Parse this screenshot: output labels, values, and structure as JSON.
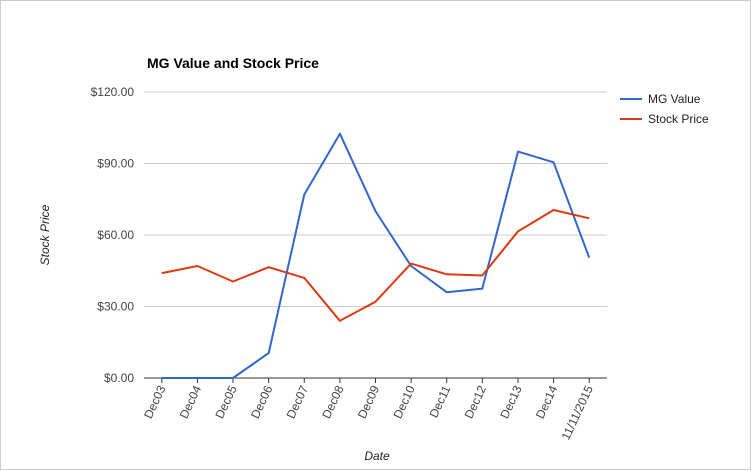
{
  "chart_data": {
    "type": "line",
    "title": "MG Value and Stock Price",
    "xlabel": "Date",
    "ylabel": "Stock Price",
    "categories": [
      "Dec03",
      "Dec04",
      "Dec05",
      "Dec06",
      "Dec07",
      "Dec08",
      "Dec09",
      "Dec10",
      "Dec11",
      "Dec12",
      "Dec13",
      "Dec14",
      "11/11/2015"
    ],
    "series": [
      {
        "name": "MG Value",
        "color": "#3366cc",
        "values": [
          0,
          0,
          0,
          10.5,
          77,
          102.5,
          70,
          47,
          36,
          37.5,
          95,
          90.5,
          50.5
        ]
      },
      {
        "name": "Stock Price",
        "color": "#dc3912",
        "values": [
          44,
          47,
          40.5,
          46.5,
          42,
          24,
          32,
          48,
          43.5,
          43,
          61.5,
          70.5,
          67
        ]
      }
    ],
    "ylim": [
      0,
      120
    ],
    "yticks": [
      0,
      30,
      60,
      90,
      120
    ],
    "ytick_labels": [
      "$0.00",
      "$30.00",
      "$60.00",
      "$90.00",
      "$120.00"
    ],
    "grid": true,
    "legend_position": "right"
  }
}
